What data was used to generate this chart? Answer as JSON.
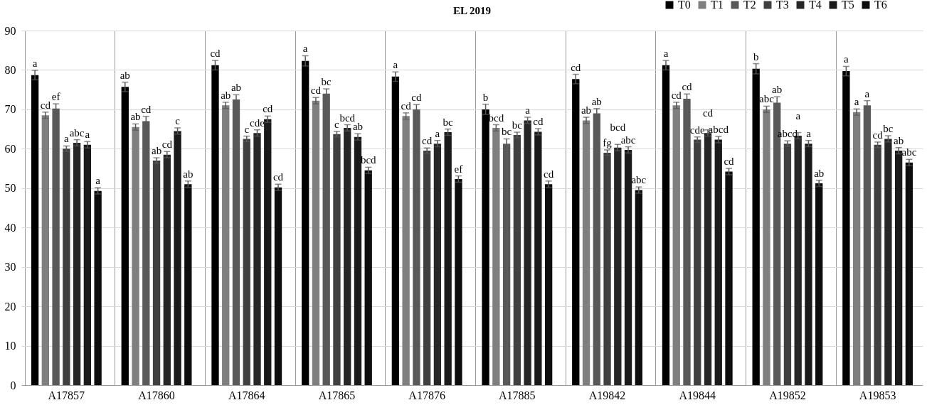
{
  "chart_data": {
    "type": "bar",
    "title": "EL 2019",
    "categories": [
      "A17857",
      "A17860",
      "A17864",
      "A17865",
      "A17876",
      "A17885",
      "A19842",
      "A19844",
      "A19852",
      "A19853"
    ],
    "series": [
      {
        "name": "T0",
        "color": "#000000",
        "values": [
          78.7,
          75.7,
          81.2,
          82.3,
          78.3,
          70.0,
          77.7,
          81.2,
          80.3,
          79.7
        ],
        "errors": [
          1.2,
          1.2,
          1.2,
          1.3,
          1.2,
          1.3,
          1.2,
          1.2,
          1.3,
          1.2
        ],
        "value_labels": [
          "a",
          "ab",
          "cd",
          "a",
          "a",
          "b",
          "cd",
          "a",
          "b",
          "a"
        ]
      },
      {
        "name": "T1",
        "color": "#7f7f7f",
        "values": [
          68.5,
          65.5,
          71.0,
          72.2,
          68.3,
          65.3,
          67.2,
          71.0,
          70.0,
          69.3
        ],
        "errors": [
          0.8,
          0.8,
          0.8,
          0.8,
          0.8,
          0.8,
          0.8,
          0.8,
          0.8,
          0.8
        ],
        "value_labels": [
          "cd",
          "ab",
          "ab",
          "cd",
          "cd",
          "bcd",
          "ab",
          "cd",
          "abc",
          "a"
        ]
      },
      {
        "name": "T2",
        "color": "#595959",
        "values": [
          70.2,
          67.0,
          72.5,
          74.0,
          70.0,
          61.3,
          69.0,
          72.7,
          71.7,
          71.0
        ],
        "errors": [
          1.2,
          1.2,
          1.2,
          1.2,
          1.2,
          1.2,
          1.2,
          1.2,
          1.5,
          1.2
        ],
        "value_labels": [
          "ef",
          "cd",
          "ab",
          "bc",
          "cd",
          "bc",
          "ab",
          "cd",
          "ab",
          "a"
        ]
      },
      {
        "name": "T3",
        "color": "#404040",
        "values": [
          60.0,
          57.0,
          62.5,
          63.7,
          59.5,
          63.5,
          59.0,
          62.3,
          61.3,
          61.0
        ],
        "errors": [
          0.7,
          0.7,
          0.7,
          0.7,
          0.7,
          0.7,
          0.7,
          0.7,
          0.7,
          0.7
        ],
        "value_labels": [
          "a",
          "ab",
          "c",
          "c",
          "cd",
          "bc",
          "fg",
          "cde",
          "abcd",
          "cd"
        ]
      },
      {
        "name": "T4",
        "color": "#262626",
        "values": [
          61.5,
          58.5,
          64.0,
          65.3,
          61.3,
          67.2,
          60.3,
          64.0,
          63.3,
          62.5
        ],
        "errors": [
          0.8,
          0.8,
          0.8,
          0.8,
          0.8,
          0.8,
          0.8,
          0.8,
          0.8,
          0.8
        ],
        "value_labels": [
          "abc",
          "cd",
          "cde",
          "bcd",
          "a",
          "a",
          "bcd",
          "cd",
          "a",
          "bc"
        ]
      },
      {
        "name": "T5",
        "color": "#1a1a1a",
        "values": [
          61.0,
          64.5,
          67.5,
          63.0,
          64.2,
          64.3,
          59.7,
          62.3,
          61.3,
          59.5
        ],
        "errors": [
          0.8,
          0.8,
          0.8,
          0.8,
          0.8,
          0.8,
          0.8,
          0.8,
          0.8,
          0.8
        ],
        "value_labels": [
          "a",
          "c",
          "cd",
          "ab",
          "bc",
          "cd",
          "abc",
          "abcd",
          "a",
          "ab"
        ]
      },
      {
        "name": "T6",
        "color": "#0d0d0d",
        "values": [
          49.3,
          51.0,
          50.2,
          54.5,
          52.3,
          51.0,
          49.5,
          54.2,
          51.2,
          56.5
        ],
        "errors": [
          0.8,
          0.8,
          0.8,
          0.8,
          0.8,
          0.8,
          0.8,
          0.8,
          0.8,
          0.8
        ],
        "value_labels": [
          "a",
          "ab",
          "cd",
          "bcd",
          "ef",
          "cd",
          "abc",
          "cd",
          "ab",
          "abc"
        ]
      }
    ],
    "ylim": [
      0,
      90
    ],
    "yticks": [
      0,
      10,
      20,
      30,
      40,
      50,
      60,
      70,
      80,
      90
    ],
    "grid": true,
    "legend": "top right"
  }
}
